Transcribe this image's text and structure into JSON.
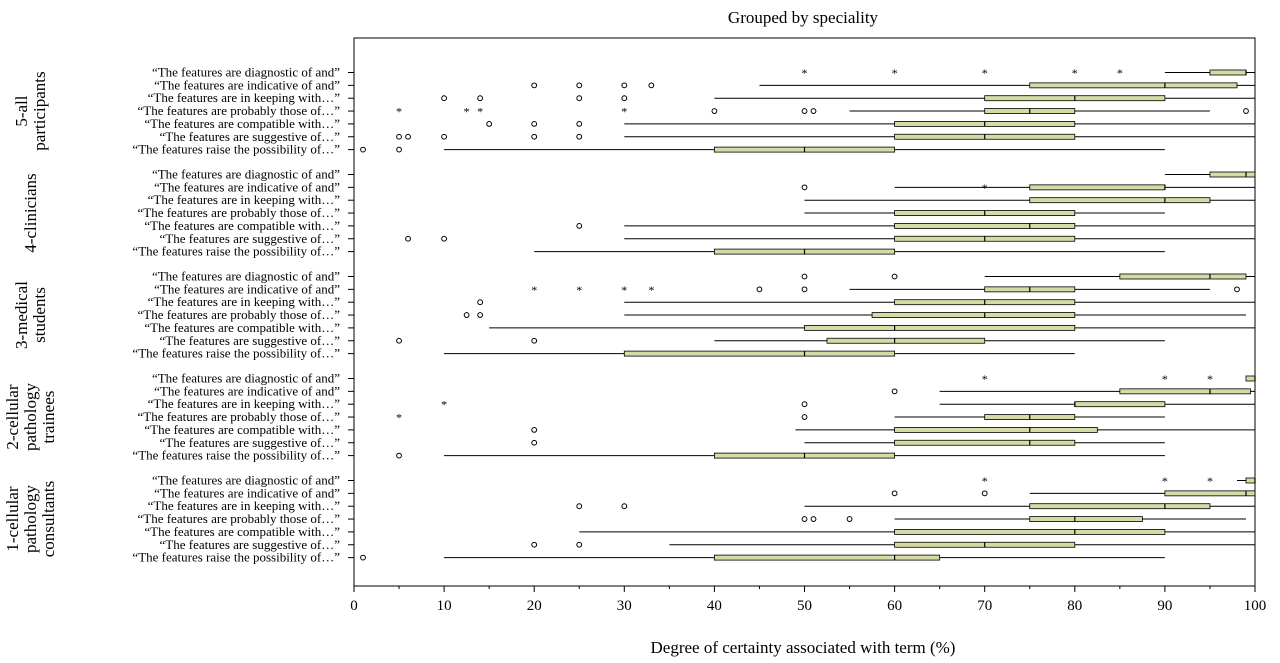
{
  "chart_data": {
    "type": "boxplot",
    "title": "Grouped by speciality",
    "xlabel": "Degree of certainty associated with term (%)",
    "xlim": [
      0,
      100
    ],
    "xticks": [
      0,
      10,
      20,
      30,
      40,
      50,
      60,
      70,
      80,
      90,
      100
    ],
    "grid": false,
    "colors": {
      "box_fill": "#d6dba6",
      "stroke": "#000000"
    },
    "terms": [
      "“The features are diagnostic of and”",
      "“The features are indicative of and”",
      "“The features are in keeping with…”",
      "“The features are probably those of…”",
      "“The features are compatible with…”",
      "“The features are suggestive of…”",
      "“The features raise the possibility of…”"
    ],
    "groups": [
      {
        "label_lines": [
          "5-all",
          "participants"
        ],
        "boxes": [
          {
            "term": 0,
            "whisker_low": 90,
            "q1": 95,
            "median": 99,
            "q3": 99,
            "whisker_high": 100,
            "outliers": [],
            "extremes": [
              50,
              60,
              70,
              80,
              85
            ]
          },
          {
            "term": 1,
            "whisker_low": 45,
            "q1": 75,
            "median": 90,
            "q3": 98,
            "whisker_high": 100,
            "outliers": [
              20,
              25,
              30,
              33
            ],
            "extremes": []
          },
          {
            "term": 2,
            "whisker_low": 40,
            "q1": 70,
            "median": 80,
            "q3": 90,
            "whisker_high": 100,
            "outliers": [
              10,
              14,
              25,
              30
            ],
            "extremes": []
          },
          {
            "term": 3,
            "whisker_low": 55,
            "q1": 70,
            "median": 75,
            "q3": 80,
            "whisker_high": 95,
            "outliers": [
              40,
              50,
              51,
              99
            ],
            "extremes": [
              5,
              12.5,
              14,
              30
            ]
          },
          {
            "term": 4,
            "whisker_low": 30,
            "q1": 60,
            "median": 70,
            "q3": 80,
            "whisker_high": 100,
            "outliers": [
              15,
              20,
              25
            ],
            "extremes": []
          },
          {
            "term": 5,
            "whisker_low": 30,
            "q1": 60,
            "median": 70,
            "q3": 80,
            "whisker_high": 100,
            "outliers": [
              5,
              6,
              10,
              20,
              25
            ],
            "extremes": []
          },
          {
            "term": 6,
            "whisker_low": 10,
            "q1": 40,
            "median": 50,
            "q3": 60,
            "whisker_high": 90,
            "outliers": [
              1,
              5
            ],
            "extremes": []
          }
        ]
      },
      {
        "label_lines": [
          "4-clinicians"
        ],
        "boxes": [
          {
            "term": 0,
            "whisker_low": 90,
            "q1": 95,
            "median": 99,
            "q3": 100,
            "whisker_high": 100,
            "outliers": [],
            "extremes": []
          },
          {
            "term": 1,
            "whisker_low": 60,
            "q1": 75,
            "median": 90,
            "q3": 90,
            "whisker_high": 100,
            "outliers": [
              50
            ],
            "extremes": [
              70
            ]
          },
          {
            "term": 2,
            "whisker_low": 50,
            "q1": 75,
            "median": 90,
            "q3": 95,
            "whisker_high": 100,
            "outliers": [],
            "extremes": []
          },
          {
            "term": 3,
            "whisker_low": 50,
            "q1": 60,
            "median": 70,
            "q3": 80,
            "whisker_high": 90,
            "outliers": [],
            "extremes": []
          },
          {
            "term": 4,
            "whisker_low": 30,
            "q1": 60,
            "median": 75,
            "q3": 80,
            "whisker_high": 100,
            "outliers": [
              25
            ],
            "extremes": []
          },
          {
            "term": 5,
            "whisker_low": 30,
            "q1": 60,
            "median": 70,
            "q3": 80,
            "whisker_high": 100,
            "outliers": [
              6,
              10
            ],
            "extremes": []
          },
          {
            "term": 6,
            "whisker_low": 20,
            "q1": 40,
            "median": 50,
            "q3": 60,
            "whisker_high": 90,
            "outliers": [],
            "extremes": []
          }
        ]
      },
      {
        "label_lines": [
          "3-medical",
          "students"
        ],
        "boxes": [
          {
            "term": 0,
            "whisker_low": 70,
            "q1": 85,
            "median": 95,
            "q3": 99,
            "whisker_high": 100,
            "outliers": [
              50,
              60
            ],
            "extremes": []
          },
          {
            "term": 1,
            "whisker_low": 55,
            "q1": 70,
            "median": 75,
            "q3": 80,
            "whisker_high": 95,
            "outliers": [
              45,
              50,
              98
            ],
            "extremes": [
              20,
              25,
              30,
              33
            ]
          },
          {
            "term": 2,
            "whisker_low": 30,
            "q1": 60,
            "median": 70,
            "q3": 80,
            "whisker_high": 100,
            "outliers": [
              14
            ],
            "extremes": []
          },
          {
            "term": 3,
            "whisker_low": 30,
            "q1": 57.5,
            "median": 70,
            "q3": 80,
            "whisker_high": 99,
            "outliers": [
              12.5,
              14
            ],
            "extremes": []
          },
          {
            "term": 4,
            "whisker_low": 15,
            "q1": 50,
            "median": 60,
            "q3": 80,
            "whisker_high": 100,
            "outliers": [],
            "extremes": []
          },
          {
            "term": 5,
            "whisker_low": 40,
            "q1": 52.5,
            "median": 60,
            "q3": 70,
            "whisker_high": 90,
            "outliers": [
              5,
              20
            ],
            "extremes": []
          },
          {
            "term": 6,
            "whisker_low": 10,
            "q1": 30,
            "median": 50,
            "q3": 60,
            "whisker_high": 80,
            "outliers": [],
            "extremes": []
          }
        ]
      },
      {
        "label_lines": [
          "2-cellular",
          "pathology",
          "trainees"
        ],
        "boxes": [
          {
            "term": 0,
            "whisker_low": 99,
            "q1": 99,
            "median": 100,
            "q3": 100,
            "whisker_high": 100,
            "outliers": [],
            "extremes": [
              70,
              90,
              95
            ]
          },
          {
            "term": 1,
            "whisker_low": 65,
            "q1": 85,
            "median": 95,
            "q3": 99.5,
            "whisker_high": 100,
            "outliers": [
              60
            ],
            "extremes": []
          },
          {
            "term": 2,
            "whisker_low": 65,
            "q1": 80,
            "median": 80,
            "q3": 90,
            "whisker_high": 100,
            "outliers": [
              50
            ],
            "extremes": [
              10
            ]
          },
          {
            "term": 3,
            "whisker_low": 60,
            "q1": 70,
            "median": 75,
            "q3": 80,
            "whisker_high": 90,
            "outliers": [
              50
            ],
            "extremes": [
              5
            ]
          },
          {
            "term": 4,
            "whisker_low": 49,
            "q1": 60,
            "median": 75,
            "q3": 82.5,
            "whisker_high": 100,
            "outliers": [
              20
            ],
            "extremes": []
          },
          {
            "term": 5,
            "whisker_low": 50,
            "q1": 60,
            "median": 75,
            "q3": 80,
            "whisker_high": 90,
            "outliers": [
              20
            ],
            "extremes": []
          },
          {
            "term": 6,
            "whisker_low": 10,
            "q1": 40,
            "median": 50,
            "q3": 60,
            "whisker_high": 90,
            "outliers": [
              5
            ],
            "extremes": []
          }
        ]
      },
      {
        "label_lines": [
          "1-cellular",
          "pathology",
          "consultants"
        ],
        "boxes": [
          {
            "term": 0,
            "whisker_low": 98,
            "q1": 99,
            "median": 100,
            "q3": 100,
            "whisker_high": 100,
            "outliers": [],
            "extremes": [
              70,
              90,
              95
            ]
          },
          {
            "term": 1,
            "whisker_low": 75,
            "q1": 90,
            "median": 99,
            "q3": 100,
            "whisker_high": 100,
            "outliers": [
              60,
              70
            ],
            "extremes": []
          },
          {
            "term": 2,
            "whisker_low": 50,
            "q1": 75,
            "median": 90,
            "q3": 95,
            "whisker_high": 100,
            "outliers": [
              25,
              30
            ],
            "extremes": []
          },
          {
            "term": 3,
            "whisker_low": 60,
            "q1": 75,
            "median": 80,
            "q3": 87.5,
            "whisker_high": 99,
            "outliers": [
              50,
              51,
              55
            ],
            "extremes": []
          },
          {
            "term": 4,
            "whisker_low": 25,
            "q1": 60,
            "median": 80,
            "q3": 90,
            "whisker_high": 100,
            "outliers": [],
            "extremes": []
          },
          {
            "term": 5,
            "whisker_low": 35,
            "q1": 60,
            "median": 70,
            "q3": 80,
            "whisker_high": 100,
            "outliers": [
              20,
              25
            ],
            "extremes": []
          },
          {
            "term": 6,
            "whisker_low": 10,
            "q1": 40,
            "median": 60,
            "q3": 65,
            "whisker_high": 90,
            "outliers": [
              1
            ],
            "extremes": []
          }
        ]
      }
    ]
  }
}
